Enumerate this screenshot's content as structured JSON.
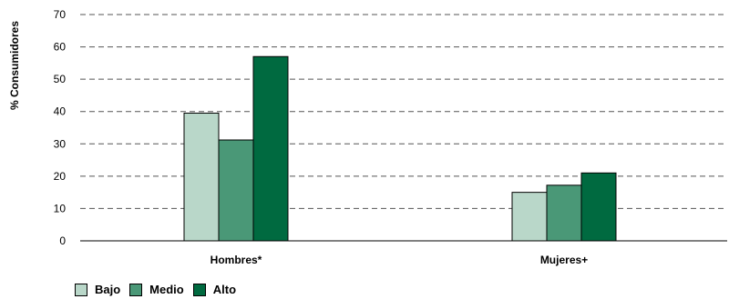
{
  "chart_data": {
    "type": "bar",
    "ylabel": "% Consumidores",
    "ylim": [
      0,
      70
    ],
    "yticks": [
      0,
      10,
      20,
      30,
      40,
      50,
      60,
      70
    ],
    "grid": "dashed-horizontal",
    "legend_position": "bottom-left",
    "categories": [
      "Hombres*",
      "Mujeres+"
    ],
    "series": [
      {
        "name": "Bajo",
        "color": "#b9d7c9",
        "values": [
          39.5,
          15
        ]
      },
      {
        "name": "Medio",
        "color": "#4a9877",
        "values": [
          31.2,
          17.2
        ]
      },
      {
        "name": "Alto",
        "color": "#006a40",
        "values": [
          57,
          21
        ]
      }
    ]
  }
}
